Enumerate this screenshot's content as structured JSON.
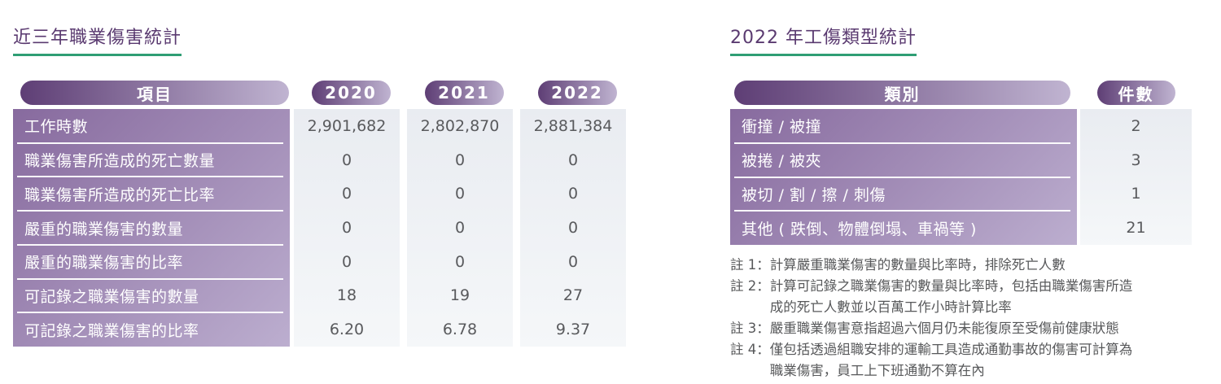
{
  "colors": {
    "title_purple": "#5a3a70",
    "underline_green": "#2f9e74",
    "pill_gradient_start": "#5e3e75",
    "pill_gradient_end": "#c0b4d1",
    "label_col_gradient_start": "#876a9e",
    "label_col_gradient_end": "#bcaecf",
    "data_col_bg": "#edf0f4",
    "data_text": "#595a5d",
    "note_text": "#57585a"
  },
  "left_table": {
    "title": "近三年職業傷害統計",
    "header": {
      "item": "項目",
      "years": [
        "2020",
        "2021",
        "2022"
      ]
    },
    "rows": [
      {
        "label": "工作時數",
        "values": [
          "2,901,682",
          "2,802,870",
          "2,881,384"
        ]
      },
      {
        "label": "職業傷害所造成的死亡數量",
        "values": [
          "0",
          "0",
          "0"
        ]
      },
      {
        "label": "職業傷害所造成的死亡比率",
        "values": [
          "0",
          "0",
          "0"
        ]
      },
      {
        "label": "嚴重的職業傷害的數量",
        "values": [
          "0",
          "0",
          "0"
        ]
      },
      {
        "label": "嚴重的職業傷害的比率",
        "values": [
          "0",
          "0",
          "0"
        ]
      },
      {
        "label": "可記錄之職業傷害的數量",
        "values": [
          "18",
          "19",
          "27"
        ]
      },
      {
        "label": "可記錄之職業傷害的比率",
        "values": [
          "6.20",
          "6.78",
          "9.37"
        ]
      }
    ]
  },
  "right_table": {
    "title": "2022 年工傷類型統計",
    "header": {
      "category": "類別",
      "count": "件數"
    },
    "rows": [
      {
        "label": "衝撞 / 被撞",
        "value": "2"
      },
      {
        "label": "被捲 / 被夾",
        "value": "3"
      },
      {
        "label": "被切 / 割 / 擦 / 刺傷",
        "value": "1"
      },
      {
        "label": "其他 ( 跌倒、物體倒塌、車禍等 )",
        "value": "21"
      }
    ]
  },
  "notes": [
    {
      "label": "註 1：",
      "text": "計算嚴重職業傷害的數量與比率時，排除死亡人數"
    },
    {
      "label": "註 2：",
      "text": "計算可記錄之職業傷害的數量與比率時，包括由職業傷害所造成的死亡人數並以百萬工作小時計算比率"
    },
    {
      "label": "註 3：",
      "text": "嚴重職業傷害意指超過六個月仍未能復原至受傷前健康狀態"
    },
    {
      "label": "註 4：",
      "text": "僅包括透過組職安排的運輸工具造成通勤事故的傷害可計算為職業傷害，員工上下班通勤不算在內"
    }
  ]
}
